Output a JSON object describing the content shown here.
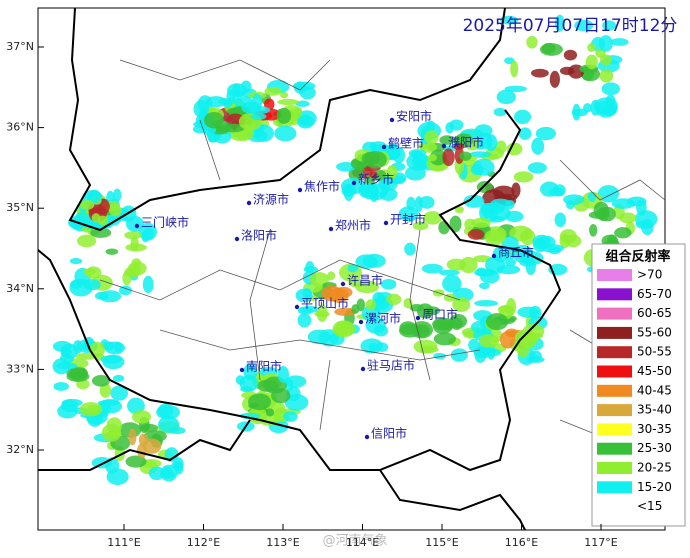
{
  "title": "2025年07月07日17时12分",
  "watermark": "@河南气象",
  "lat_ticks": [
    {
      "value": 37,
      "label": "37°N"
    },
    {
      "value": 36,
      "label": "36°N"
    },
    {
      "value": 35,
      "label": "35°N"
    },
    {
      "value": 34,
      "label": "34°N"
    },
    {
      "value": 33,
      "label": "33°N"
    },
    {
      "value": 32,
      "label": "32°N"
    }
  ],
  "lon_ticks": [
    {
      "value": 111,
      "label": "111°E"
    },
    {
      "value": 112,
      "label": "112°E"
    },
    {
      "value": 113,
      "label": "113°E"
    },
    {
      "value": 114,
      "label": "114°E"
    },
    {
      "value": 115,
      "label": "115°E"
    },
    {
      "value": 116,
      "label": "116°E"
    },
    {
      "value": 117,
      "label": "117°E"
    }
  ],
  "cities": [
    "安阳市",
    "鹤壁市",
    "濮阳市",
    "新乡市",
    "焦作市",
    "济源市",
    "郑州市",
    "开封市",
    "洛阳市",
    "三门峡市",
    "商丘市",
    "许昌市",
    "平顶山市",
    "漯河市",
    "周口市",
    "南阳市",
    "驻马店市",
    "信阳市"
  ],
  "legend": {
    "title": "组合反射率",
    "items": [
      {
        "label": ">70",
        "color": "#e87ee8"
      },
      {
        "label": "65-70",
        "color": "#8a10d0"
      },
      {
        "label": "60-65",
        "color": "#f070c0"
      },
      {
        "label": "55-60",
        "color": "#8e2020"
      },
      {
        "label": "50-55",
        "color": "#b82828"
      },
      {
        "label": "45-50",
        "color": "#ee1010"
      },
      {
        "label": "40-45",
        "color": "#f08a20"
      },
      {
        "label": "35-40",
        "color": "#d8a838"
      },
      {
        "label": "30-35",
        "color": "#ffff20"
      },
      {
        "label": "25-30",
        "color": "#38c038"
      },
      {
        "label": "20-25",
        "color": "#90ee30"
      },
      {
        "label": "15-20",
        "color": "#10f0f0"
      },
      {
        "label": "<15",
        "color": null
      }
    ]
  }
}
